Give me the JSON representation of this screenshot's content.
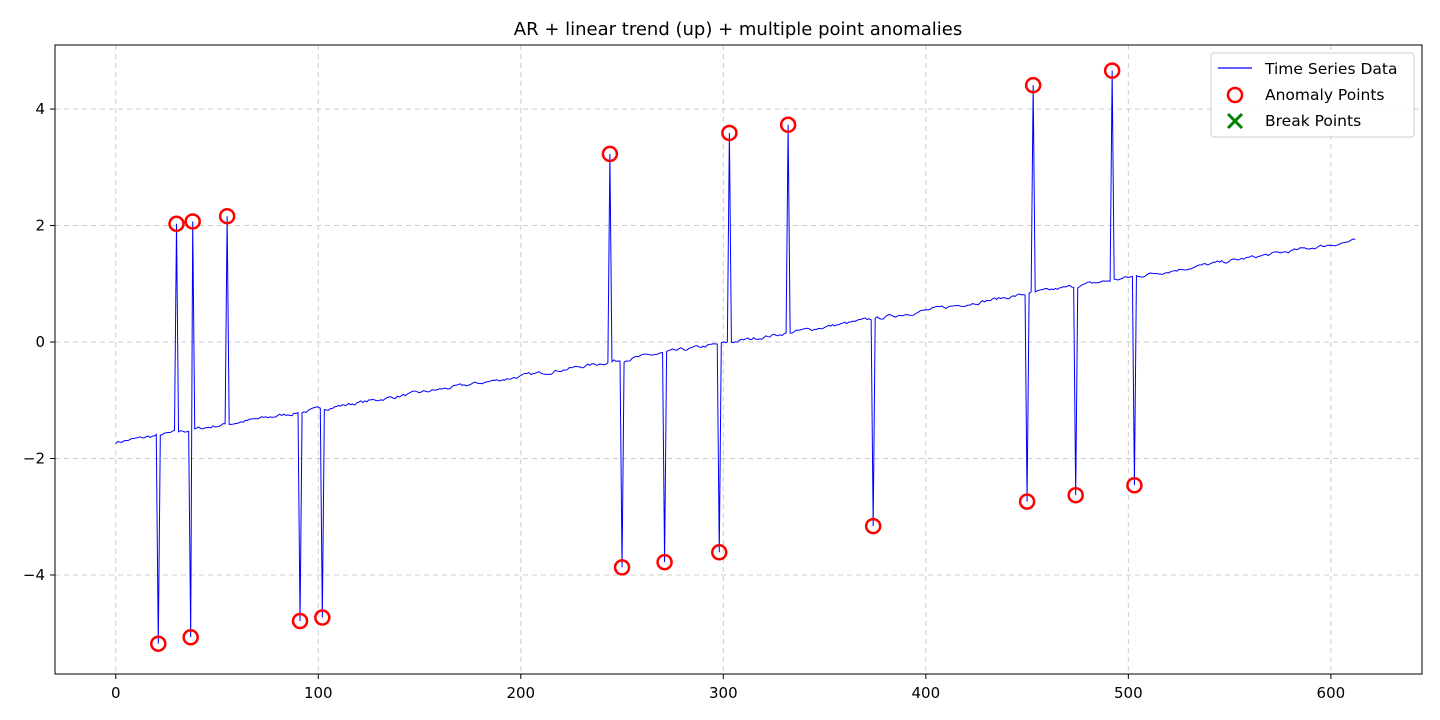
{
  "chart_data": {
    "type": "line",
    "title": "AR + linear trend (up) + multiple point anomalies",
    "xlabel": "",
    "ylabel": "",
    "xlim": [
      -30,
      645
    ],
    "ylim": [
      -5.7,
      5.1
    ],
    "xticks": [
      0,
      100,
      200,
      300,
      400,
      500,
      600
    ],
    "yticks": [
      -4,
      -2,
      0,
      2,
      4
    ],
    "xtick_labels": [
      "0",
      "100",
      "200",
      "300",
      "400",
      "500",
      "600"
    ],
    "ytick_labels": [
      "−4",
      "−2",
      "0",
      "2",
      "4"
    ],
    "grid": true,
    "legend_position": "top-right",
    "n_points": 613,
    "trend": {
      "start": -1.72,
      "end": 1.74
    },
    "series": [
      {
        "name": "Time Series Data",
        "style": "line",
        "color": "#0000ff"
      },
      {
        "name": "Anomaly Points",
        "style": "hollow-circle",
        "color": "#ff0000",
        "points": [
          {
            "x": 21,
            "y": -5.18
          },
          {
            "x": 30,
            "y": 2.03
          },
          {
            "x": 37,
            "y": -5.07
          },
          {
            "x": 38,
            "y": 2.07
          },
          {
            "x": 55,
            "y": 2.16
          },
          {
            "x": 91,
            "y": -4.79
          },
          {
            "x": 102,
            "y": -4.73
          },
          {
            "x": 244,
            "y": 3.23
          },
          {
            "x": 250,
            "y": -3.87
          },
          {
            "x": 271,
            "y": -3.78
          },
          {
            "x": 298,
            "y": -3.61
          },
          {
            "x": 303,
            "y": 3.59
          },
          {
            "x": 332,
            "y": 3.73
          },
          {
            "x": 374,
            "y": -3.16
          },
          {
            "x": 450,
            "y": -2.74
          },
          {
            "x": 453,
            "y": 4.41
          },
          {
            "x": 474,
            "y": -2.63
          },
          {
            "x": 492,
            "y": 4.66
          },
          {
            "x": 503,
            "y": -2.46
          }
        ]
      },
      {
        "name": "Break Points",
        "style": "x-marker",
        "color": "#008000",
        "points": []
      }
    ]
  },
  "colors": {
    "line": "#0000ff",
    "anomaly": "#ff0000",
    "break": "#008000",
    "grid": "#cccccc"
  }
}
